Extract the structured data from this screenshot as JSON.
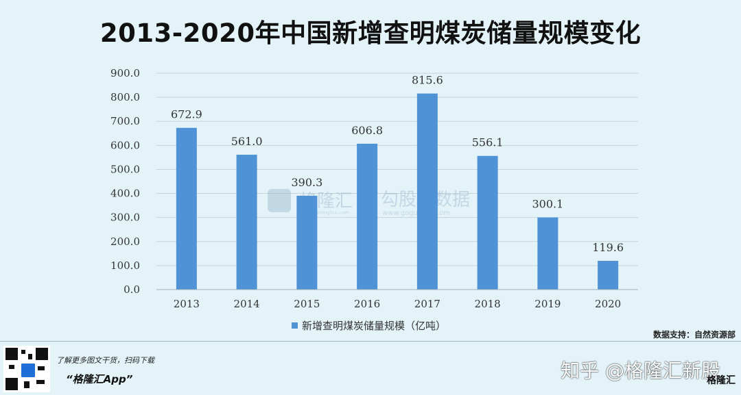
{
  "title": "2013-2020年中国新增查明煤炭储量规模变化",
  "chart_data": {
    "type": "bar",
    "categories": [
      "2013",
      "2014",
      "2015",
      "2016",
      "2017",
      "2018",
      "2019",
      "2020"
    ],
    "series": [
      {
        "name": "新增查明煤炭储量规模（亿吨）",
        "values": [
          672.9,
          561.0,
          390.3,
          606.8,
          815.6,
          556.1,
          300.1,
          119.6
        ]
      }
    ],
    "data_labels": [
      "672.9",
      "561.0",
      "390.3",
      "606.8",
      "815.6",
      "556.1",
      "300.1",
      "119.6"
    ],
    "yticks": [
      "0.0",
      "100.0",
      "200.0",
      "300.0",
      "400.0",
      "500.0",
      "600.0",
      "700.0",
      "800.0",
      "900.0"
    ],
    "ylim": [
      0,
      900
    ],
    "grid": true,
    "legend_position": "bottom",
    "bar_color": "#4f93d6"
  },
  "watermark": {
    "brand": "格隆汇",
    "brand_url": "www.gelonghui.com",
    "data_brand": "勾股大数据",
    "data_url": "www.gogudata.com"
  },
  "source": "数据支持：自然资源部",
  "footer": {
    "line1": "了解更多图文干货，扫码下载",
    "line2": "“格隆汇App”",
    "zhihu": "知乎 @格隆汇新股",
    "logo": "格隆汇"
  }
}
